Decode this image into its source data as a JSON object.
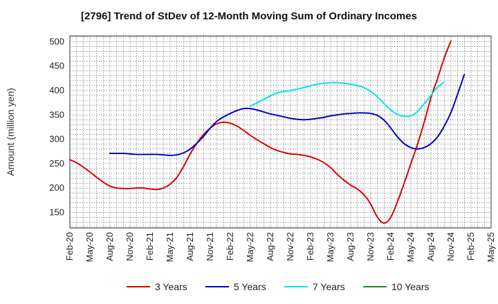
{
  "chart_data": {
    "type": "line",
    "title": "[2796]  Trend of StDev of 12-Month Moving Sum of Ordinary Incomes",
    "xlabel": "",
    "ylabel": "Amount (million yen)",
    "ylim": [
      118,
      512
    ],
    "y_ticks": [
      150,
      200,
      250,
      300,
      350,
      400,
      450,
      500
    ],
    "x_tick_labels": [
      "Feb-20",
      "May-20",
      "Aug-20",
      "Nov-20",
      "Feb-21",
      "May-21",
      "Aug-21",
      "Nov-21",
      "Feb-22",
      "May-22",
      "Aug-22",
      "Nov-22",
      "Feb-23",
      "May-23",
      "Aug-23",
      "Nov-23",
      "Feb-24",
      "May-24",
      "Aug-24",
      "Nov-24",
      "Feb-25",
      "May-25"
    ],
    "x_index_range": [
      0,
      63
    ],
    "grid": true,
    "legend_position": "bottom",
    "series": [
      {
        "name": "3 Years",
        "color": "#dd0000",
        "start_index": 0,
        "values": [
          258,
          252,
          243,
          233,
          222,
          212,
          204,
          200,
          199,
          199,
          200,
          200,
          198,
          197,
          200,
          208,
          222,
          244,
          270,
          292,
          310,
          323,
          332,
          335,
          333,
          327,
          318,
          308,
          299,
          291,
          283,
          277,
          273,
          270,
          269,
          267,
          264,
          259,
          252,
          242,
          228,
          216,
          206,
          198,
          186,
          167,
          140,
          128,
          140,
          172,
          210,
          250,
          290,
          335,
          385,
          425,
          467,
          502
        ]
      },
      {
        "name": "5 Years",
        "color": "#0000cc",
        "start_index": 6,
        "values": [
          271,
          271,
          271,
          270,
          269,
          269,
          269,
          269,
          268,
          267,
          268,
          272,
          280,
          292,
          306,
          323,
          337,
          346,
          353,
          359,
          363,
          363,
          360,
          356,
          352,
          349,
          346,
          343,
          341,
          340,
          341,
          343,
          345,
          348,
          350,
          352,
          353,
          354,
          354,
          353,
          349,
          339,
          323,
          305,
          291,
          283,
          280,
          283,
          291,
          305,
          327,
          355,
          393,
          433
        ]
      },
      {
        "name": "7 Years",
        "color": "#00e5e5",
        "start_index": 27,
        "values": [
          368,
          375,
          382,
          389,
          395,
          398,
          400,
          403,
          406,
          410,
          413,
          415,
          416,
          416,
          415,
          413,
          410,
          406,
          398,
          387,
          373,
          360,
          351,
          347,
          348,
          357,
          373,
          390,
          407,
          417
        ]
      },
      {
        "name": "10 Years",
        "color": "#228822",
        "start_index": 0,
        "values": []
      }
    ]
  }
}
